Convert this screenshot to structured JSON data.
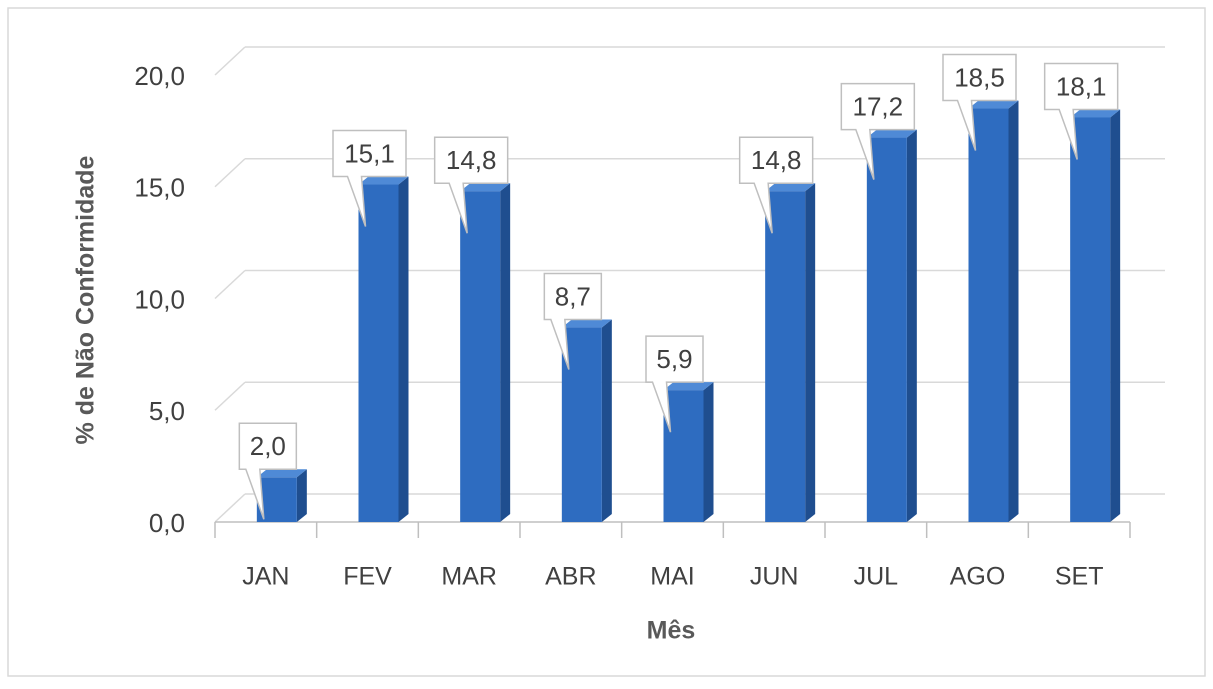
{
  "chart_data": {
    "type": "bar3d",
    "y_label": "% de Não Conformidade",
    "x_label": "Mês",
    "categories": [
      "JAN",
      "FEV",
      "MAR",
      "ABR",
      "MAI",
      "JUN",
      "JUL",
      "AGO",
      "SET"
    ],
    "values": [
      2.0,
      15.1,
      14.8,
      8.7,
      5.9,
      14.8,
      17.2,
      18.5,
      18.1
    ],
    "value_labels": [
      "2,0",
      "15,1",
      "14,8",
      "8,7",
      "5,9",
      "14,8",
      "17,2",
      "18,5",
      "18,1"
    ],
    "color": "#2e6cc0",
    "ylim": [
      0,
      20
    ],
    "yticks": [
      {
        "value": 0,
        "label": "0,0"
      },
      {
        "value": 5,
        "label": "5,0"
      },
      {
        "value": 10,
        "label": "10,0"
      },
      {
        "value": 15,
        "label": "15,0"
      },
      {
        "value": 20,
        "label": "20,0"
      }
    ],
    "grid": true
  }
}
